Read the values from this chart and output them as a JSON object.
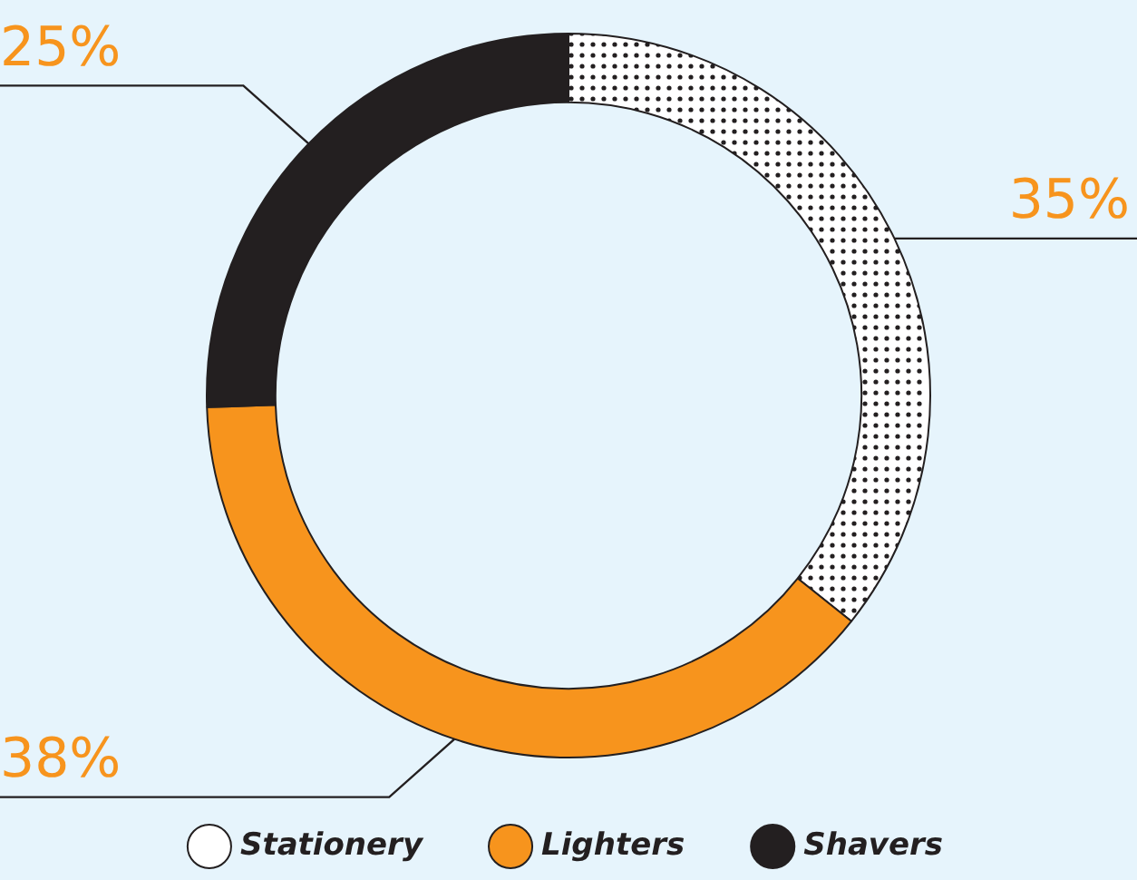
{
  "chart_data": {
    "type": "donut",
    "categories": [
      "Stationery",
      "Lighters",
      "Shavers"
    ],
    "values": [
      35,
      38,
      25
    ],
    "value_labels": [
      "35%",
      "38%",
      "25%"
    ],
    "colors": [
      "#ffffff",
      "#f7941d",
      "#231f20"
    ],
    "legend": "bottom"
  }
}
